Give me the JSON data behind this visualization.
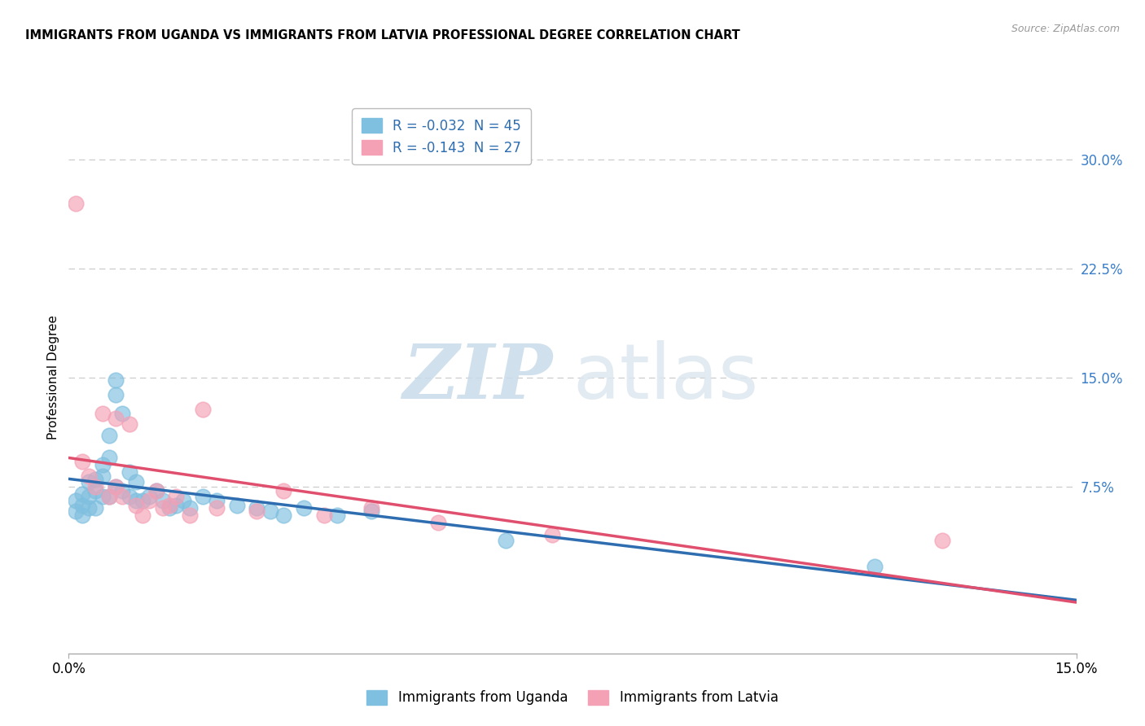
{
  "title": "IMMIGRANTS FROM UGANDA VS IMMIGRANTS FROM LATVIA PROFESSIONAL DEGREE CORRELATION CHART",
  "source": "Source: ZipAtlas.com",
  "ylabel": "Professional Degree",
  "right_yticks": [
    "30.0%",
    "22.5%",
    "15.0%",
    "7.5%"
  ],
  "right_ytick_vals": [
    0.3,
    0.225,
    0.15,
    0.075
  ],
  "xlim": [
    0.0,
    0.15
  ],
  "ylim": [
    -0.04,
    0.34
  ],
  "legend_r1": "R = -0.032  N = 45",
  "legend_r2": "R = -0.143  N = 27",
  "legend_label1": "Immigrants from Uganda",
  "legend_label2": "Immigrants from Latvia",
  "color_blue": "#7fbfdf",
  "color_pink": "#f4a0b5",
  "color_blue_line": "#2e6db0",
  "color_pink_line": "#e0506e",
  "title_fontsize": 11,
  "source_fontsize": 9,
  "watermark_zip": "ZIP",
  "watermark_atlas": "atlas",
  "uganda_x": [
    0.001,
    0.001,
    0.002,
    0.002,
    0.002,
    0.003,
    0.003,
    0.003,
    0.004,
    0.004,
    0.004,
    0.005,
    0.005,
    0.005,
    0.006,
    0.006,
    0.006,
    0.007,
    0.007,
    0.007,
    0.008,
    0.008,
    0.009,
    0.009,
    0.01,
    0.01,
    0.011,
    0.012,
    0.013,
    0.014,
    0.015,
    0.016,
    0.017,
    0.018,
    0.02,
    0.022,
    0.025,
    0.028,
    0.03,
    0.032,
    0.035,
    0.04,
    0.045,
    0.065,
    0.12
  ],
  "uganda_y": [
    0.065,
    0.058,
    0.07,
    0.062,
    0.055,
    0.078,
    0.068,
    0.06,
    0.08,
    0.072,
    0.06,
    0.09,
    0.082,
    0.068,
    0.11,
    0.095,
    0.068,
    0.148,
    0.138,
    0.075,
    0.125,
    0.072,
    0.085,
    0.068,
    0.078,
    0.065,
    0.065,
    0.068,
    0.072,
    0.065,
    0.06,
    0.062,
    0.065,
    0.06,
    0.068,
    0.065,
    0.062,
    0.06,
    0.058,
    0.055,
    0.06,
    0.055,
    0.058,
    0.038,
    0.02
  ],
  "latvia_x": [
    0.001,
    0.002,
    0.003,
    0.004,
    0.005,
    0.006,
    0.007,
    0.007,
    0.008,
    0.009,
    0.01,
    0.011,
    0.012,
    0.013,
    0.014,
    0.015,
    0.016,
    0.018,
    0.02,
    0.022,
    0.028,
    0.032,
    0.038,
    0.045,
    0.055,
    0.072,
    0.13
  ],
  "latvia_y": [
    0.27,
    0.092,
    0.082,
    0.075,
    0.125,
    0.068,
    0.075,
    0.122,
    0.068,
    0.118,
    0.062,
    0.055,
    0.065,
    0.072,
    0.06,
    0.062,
    0.068,
    0.055,
    0.128,
    0.06,
    0.058,
    0.072,
    0.055,
    0.06,
    0.05,
    0.042,
    0.038
  ]
}
